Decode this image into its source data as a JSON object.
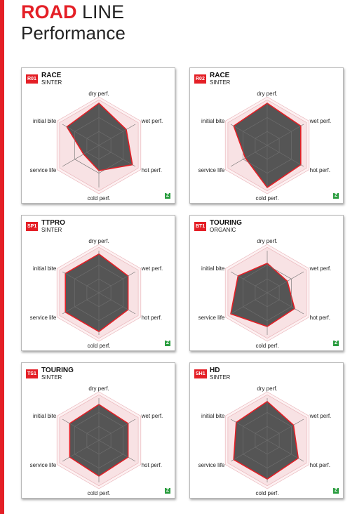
{
  "header": {
    "brand": "ROAD",
    "line": "LINE",
    "subtitle": "Performance"
  },
  "colors": {
    "accent": "#e41f26",
    "polygon_fill": "#555555",
    "badge": "#2a9d3f"
  },
  "chart_data": [
    {
      "type": "radar",
      "code": "R01",
      "title": "RACE",
      "subtitle": "SINTER",
      "axes": [
        "dry perf.",
        "wet perf.",
        "hot perf.",
        "cold perf.",
        "service life",
        "initial bite"
      ],
      "values": [
        1.0,
        0.75,
        0.92,
        0.6,
        0.42,
        0.88
      ],
      "range": [
        0,
        1
      ],
      "badge": "Z"
    },
    {
      "type": "radar",
      "code": "R02",
      "title": "RACE",
      "subtitle": "SINTER",
      "axes": [
        "dry perf.",
        "wet perf.",
        "hot perf.",
        "cold perf.",
        "service life",
        "initial bite"
      ],
      "values": [
        1.0,
        0.92,
        0.92,
        1.0,
        0.6,
        0.92
      ],
      "range": [
        0,
        1
      ],
      "badge": "Z"
    },
    {
      "type": "radar",
      "code": "SP1",
      "title": "TTPRO",
      "subtitle": "SINTER",
      "axes": [
        "dry perf.",
        "wet perf.",
        "hot perf.",
        "cold perf.",
        "service life",
        "initial bite"
      ],
      "values": [
        0.92,
        0.8,
        0.8,
        0.92,
        0.92,
        0.92
      ],
      "range": [
        0,
        1
      ],
      "badge": "Z"
    },
    {
      "type": "radar",
      "code": "BT1",
      "title": "TOURING",
      "subtitle": "ORGANIC",
      "axes": [
        "dry perf.",
        "wet perf.",
        "hot perf.",
        "cold perf.",
        "service life",
        "initial bite"
      ],
      "values": [
        0.7,
        0.55,
        0.75,
        0.8,
        1.0,
        0.8
      ],
      "range": [
        0,
        1
      ],
      "badge": "Z"
    },
    {
      "type": "radar",
      "code": "TS1",
      "title": "TOURING",
      "subtitle": "SINTER",
      "axes": [
        "dry perf.",
        "wet perf.",
        "hot perf.",
        "cold perf.",
        "service life",
        "initial bite"
      ],
      "values": [
        0.85,
        0.8,
        0.8,
        0.85,
        0.8,
        0.8
      ],
      "range": [
        0,
        1
      ],
      "badge": "Z"
    },
    {
      "type": "radar",
      "code": "SH1",
      "title": "HD",
      "subtitle": "SINTER",
      "axes": [
        "dry perf.",
        "wet perf.",
        "hot perf.",
        "cold perf.",
        "service life",
        "initial bite"
      ],
      "values": [
        0.92,
        0.72,
        0.85,
        0.92,
        0.92,
        0.85
      ],
      "range": [
        0,
        1
      ],
      "badge": "Z"
    }
  ]
}
